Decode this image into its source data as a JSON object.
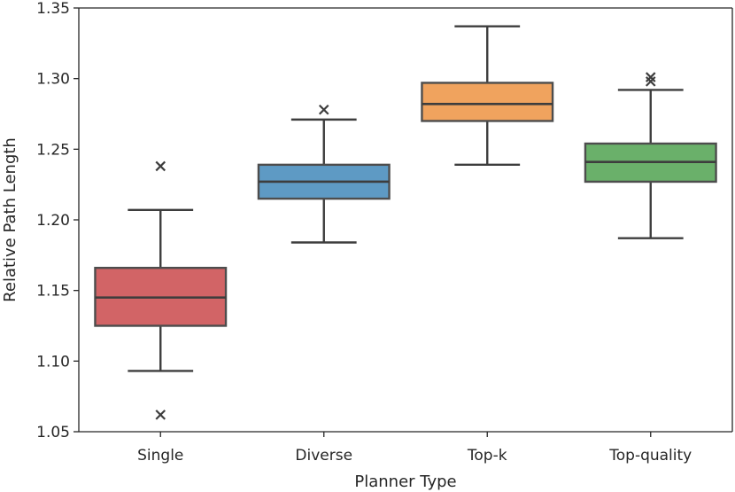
{
  "chart_data": {
    "type": "box",
    "title": "",
    "xlabel": "Planner Type",
    "ylabel": "Relative Path Length",
    "ylim": [
      1.05,
      1.35
    ],
    "yticks": [
      "1.05",
      "1.10",
      "1.15",
      "1.20",
      "1.25",
      "1.30",
      "1.35"
    ],
    "categories": [
      "Single",
      "Diverse",
      "Top-k",
      "Top-quality"
    ],
    "boxes": [
      {
        "name": "Single",
        "color": "#d26466",
        "whisker_low": 1.093,
        "q1": 1.125,
        "median": 1.145,
        "q3": 1.166,
        "whisker_high": 1.207,
        "fliers": [
          1.238,
          1.062
        ]
      },
      {
        "name": "Diverse",
        "color": "#5e9ac4",
        "whisker_low": 1.184,
        "q1": 1.215,
        "median": 1.227,
        "q3": 1.239,
        "whisker_high": 1.271,
        "fliers": [
          1.278
        ]
      },
      {
        "name": "Top-k",
        "color": "#f0a35e",
        "whisker_low": 1.239,
        "q1": 1.27,
        "median": 1.282,
        "q3": 1.297,
        "whisker_high": 1.337,
        "fliers": []
      },
      {
        "name": "Top-quality",
        "color": "#6ab06a",
        "whisker_low": 1.187,
        "q1": 1.227,
        "median": 1.241,
        "q3": 1.254,
        "whisker_high": 1.292,
        "fliers": [
          1.301,
          1.298
        ]
      }
    ]
  }
}
